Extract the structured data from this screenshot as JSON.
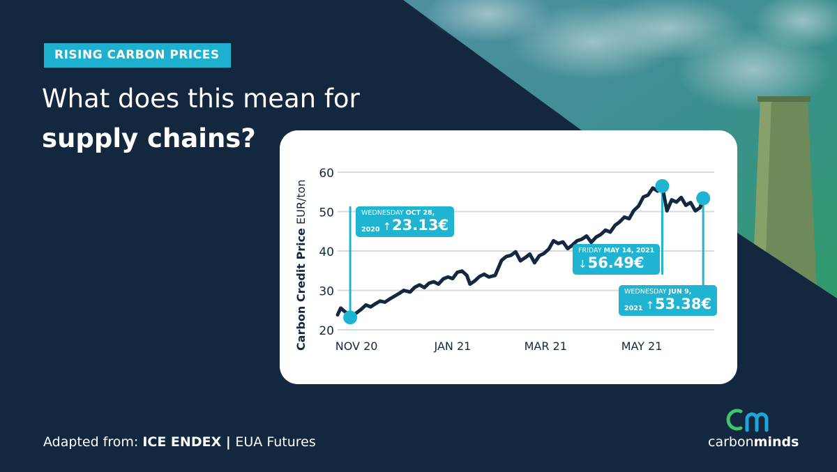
{
  "tag": "RISING CARBON PRICES",
  "headline": {
    "line1": "What does this mean for",
    "line2": "supply chains?"
  },
  "footer": {
    "prefix": "Adapted from: ",
    "source": "ICE ENDEX",
    "separator": " | ",
    "product": "EUA Futures"
  },
  "logo": {
    "mark": "cm",
    "text_light": "carbon",
    "text_bold": "minds"
  },
  "colors": {
    "navy": "#13273f",
    "accent": "#1fb4d2",
    "logo_green": "#3ec46d",
    "logo_blue": "#1fa6d6"
  },
  "chart_data": {
    "type": "line",
    "ylabel_bold": "Carbon Credit Price",
    "ylabel_unit": " EUR/ton",
    "ylim": [
      20,
      60
    ],
    "yticks": [
      "60",
      "50",
      "40",
      "30",
      "20"
    ],
    "xticks": [
      {
        "date": "2020-11-01",
        "label": "NOV 20"
      },
      {
        "date": "2021-01-01",
        "label": "JAN 21"
      },
      {
        "date": "2021-03-01",
        "label": "MAR 21"
      },
      {
        "date": "2021-05-01",
        "label": "MAY 21"
      }
    ],
    "xlim": [
      "2020-10-20",
      "2021-06-16"
    ],
    "grid": true,
    "series": [
      {
        "x": [
          "2020-10-20",
          "2020-10-22",
          "2020-10-24",
          "2020-10-26",
          "2020-10-28",
          "2020-10-31",
          "2020-11-04",
          "2020-11-07",
          "2020-11-10",
          "2020-11-13",
          "2020-11-16",
          "2020-11-19",
          "2020-11-22",
          "2020-11-25",
          "2020-11-28",
          "2020-12-01",
          "2020-12-05",
          "2020-12-08",
          "2020-12-11",
          "2020-12-14",
          "2020-12-17",
          "2020-12-20",
          "2020-12-23",
          "2020-12-26",
          "2020-12-29",
          "2021-01-01",
          "2021-01-04",
          "2021-01-07",
          "2021-01-10",
          "2021-01-12",
          "2021-01-15",
          "2021-01-18",
          "2021-01-21",
          "2021-01-24",
          "2021-01-28",
          "2021-02-01",
          "2021-02-04",
          "2021-02-07",
          "2021-02-10",
          "2021-02-13",
          "2021-02-16",
          "2021-02-19",
          "2021-02-22",
          "2021-02-25",
          "2021-02-28",
          "2021-03-03",
          "2021-03-06",
          "2021-03-09",
          "2021-03-12",
          "2021-03-15",
          "2021-03-18",
          "2021-03-21",
          "2021-03-24",
          "2021-03-27",
          "2021-03-30",
          "2021-04-02",
          "2021-04-05",
          "2021-04-08",
          "2021-04-11",
          "2021-04-14",
          "2021-04-17",
          "2021-04-20",
          "2021-04-23",
          "2021-04-26",
          "2021-04-29",
          "2021-05-02",
          "2021-05-05",
          "2021-05-08",
          "2021-05-11",
          "2021-05-14",
          "2021-05-17",
          "2021-05-20",
          "2021-05-23",
          "2021-05-26",
          "2021-05-29",
          "2021-06-01",
          "2021-06-04",
          "2021-06-07",
          "2021-06-09"
        ],
        "values": [
          23.8,
          25.5,
          24.8,
          24.2,
          23.13,
          24.0,
          25.2,
          26.3,
          25.8,
          26.6,
          27.3,
          27.0,
          27.8,
          28.5,
          29.2,
          30.0,
          29.6,
          30.8,
          31.4,
          30.7,
          31.8,
          32.2,
          31.6,
          32.9,
          33.4,
          33.0,
          34.6,
          34.9,
          33.8,
          31.6,
          32.4,
          33.5,
          34.1,
          33.4,
          33.8,
          37.6,
          38.6,
          38.9,
          39.8,
          37.5,
          38.3,
          39.2,
          37.0,
          38.8,
          39.4,
          40.5,
          42.6,
          41.9,
          42.3,
          40.6,
          41.5,
          42.6,
          43.0,
          43.8,
          42.2,
          43.5,
          44.2,
          45.3,
          44.8,
          46.5,
          47.4,
          48.6,
          48.2,
          50.3,
          51.4,
          53.7,
          54.2,
          56.0,
          55.2,
          56.49,
          50.2,
          53.0,
          52.4,
          53.6,
          51.6,
          52.3,
          50.2,
          51.0,
          53.38
        ]
      }
    ],
    "callouts": [
      {
        "id": "oct",
        "date": "2020-10-28",
        "value": 23.13,
        "day": "WEDNESDAY ",
        "date_text": "OCT 28,",
        "year": "2020",
        "arrow": "↑",
        "value_text": "23.13€"
      },
      {
        "id": "may",
        "date": "2021-05-14",
        "value": 56.49,
        "day": "FRIDAY ",
        "date_text": "MAY 14, 2021",
        "year": "",
        "arrow": "↓",
        "value_text": "56.49€"
      },
      {
        "id": "jun",
        "date": "2021-06-09",
        "value": 53.38,
        "day": "WEDNESDAY ",
        "date_text": "JUN 9,",
        "year": "2021",
        "arrow": "↑",
        "value_text": "53.38€"
      }
    ]
  }
}
